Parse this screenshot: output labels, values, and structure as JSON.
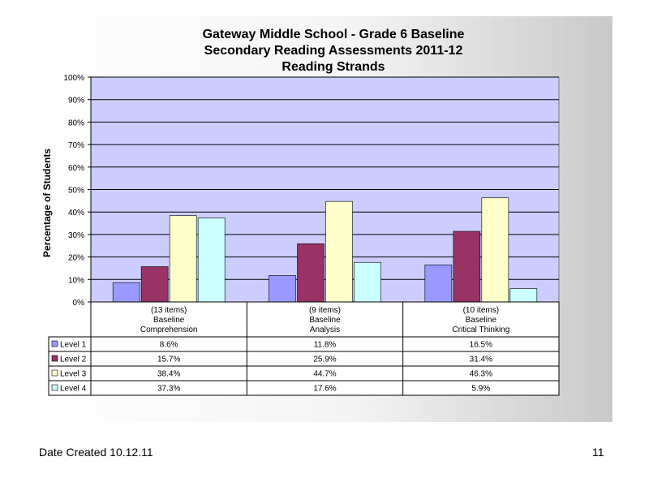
{
  "chart_data": {
    "type": "bar",
    "title_lines": [
      "Gateway Middle School - Grade 6 Baseline",
      "Secondary Reading Assessments 2011-12",
      "Reading Strands"
    ],
    "ylabel": "Percentage of Students",
    "ylim": [
      0,
      100
    ],
    "yticks": [
      "0%",
      "10%",
      "20%",
      "30%",
      "40%",
      "50%",
      "60%",
      "70%",
      "80%",
      "90%",
      "100%"
    ],
    "categories": [
      [
        "(13 items)",
        "Baseline",
        "Comprehension"
      ],
      [
        "(9 items)",
        "Baseline",
        "Analysis"
      ],
      [
        "(10 items)",
        "Baseline",
        "Critical Thinking"
      ]
    ],
    "series": [
      {
        "name": "Level 1",
        "color": "#9999ff",
        "values": [
          8.6,
          11.8,
          16.5
        ],
        "labels": [
          "8.6%",
          "11.8%",
          "16.5%"
        ]
      },
      {
        "name": "Level 2",
        "color": "#993366",
        "values": [
          15.7,
          25.9,
          31.4
        ],
        "labels": [
          "15.7%",
          "25.9%",
          "31.4%"
        ]
      },
      {
        "name": "Level 3",
        "color": "#ffffcc",
        "values": [
          38.4,
          44.7,
          46.3
        ],
        "labels": [
          "38.4%",
          "44.7%",
          "46.3%"
        ]
      },
      {
        "name": "Level 4",
        "color": "#ccffff",
        "values": [
          37.3,
          17.6,
          5.9
        ],
        "labels": [
          "37.3%",
          "17.6%",
          "5.9%"
        ]
      }
    ],
    "plot_background": "#ccccff",
    "grid": true,
    "legend": "data-table"
  },
  "footer": {
    "date_created": "Date Created  10.12.11",
    "page_number": "11"
  }
}
